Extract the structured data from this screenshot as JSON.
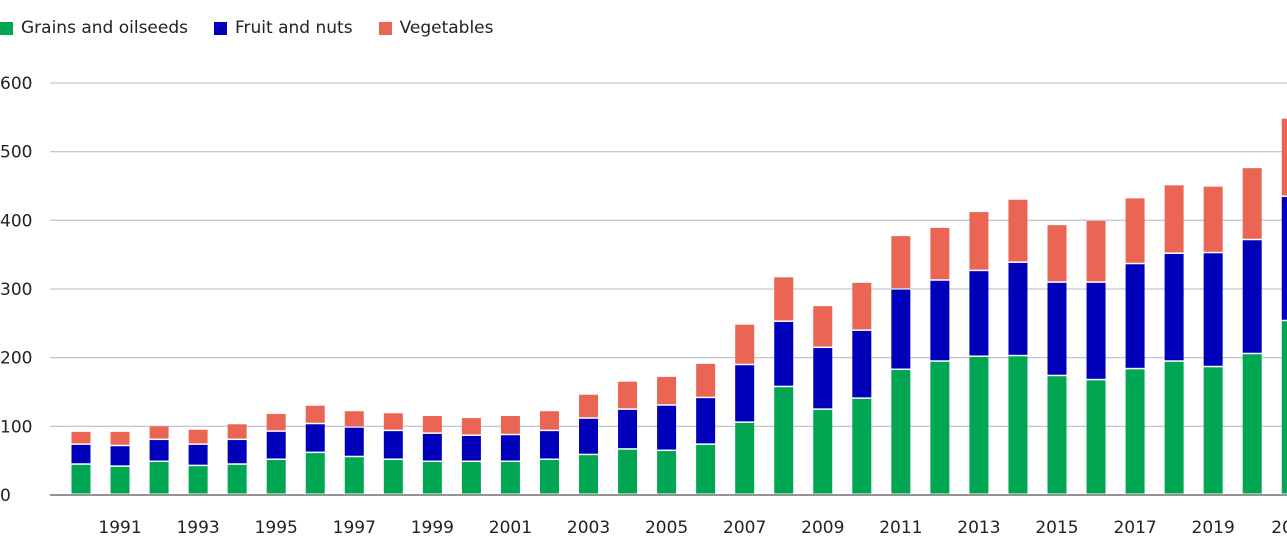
{
  "chart_data": {
    "type": "bar",
    "stacked": true,
    "title": "",
    "xlabel": "",
    "ylabel": "",
    "ylim": [
      0,
      600
    ],
    "yticks": [
      0,
      100,
      200,
      300,
      400,
      500,
      600
    ],
    "grid": true,
    "legend_position": "top-left",
    "categories": [
      1990,
      1991,
      1992,
      1993,
      1994,
      1995,
      1996,
      1997,
      1998,
      1999,
      2000,
      2001,
      2002,
      2003,
      2004,
      2005,
      2006,
      2007,
      2008,
      2009,
      2010,
      2011,
      2012,
      2013,
      2014,
      2015,
      2016,
      2017,
      2018,
      2019,
      2020,
      2021
    ],
    "xtick_labels": [
      "1991",
      "1993",
      "1995",
      "1997",
      "1999",
      "2001",
      "2003",
      "2005",
      "2007",
      "2009",
      "2011",
      "2013",
      "2015",
      "2017",
      "2019",
      "20"
    ],
    "series": [
      {
        "name": "Grains and oilseeds",
        "color": "#00a651",
        "values": [
          44,
          41,
          48,
          42,
          44,
          51,
          61,
          55,
          51,
          48,
          48,
          48,
          51,
          58,
          66,
          64,
          73,
          105,
          157,
          124,
          140,
          182,
          194,
          201,
          202,
          173,
          167,
          183,
          194,
          186,
          205,
          253
        ]
      },
      {
        "name": "Fruit and nuts",
        "color": "#0000bb",
        "values": [
          29,
          30,
          32,
          31,
          36,
          41,
          42,
          43,
          42,
          41,
          38,
          39,
          42,
          53,
          58,
          66,
          68,
          84,
          95,
          90,
          99,
          117,
          118,
          125,
          136,
          136,
          142,
          153,
          157,
          166,
          166,
          181
        ]
      },
      {
        "name": "Vegetables",
        "color": "#ea6553",
        "values": [
          19,
          21,
          20,
          22,
          23,
          26,
          27,
          24,
          26,
          26,
          26,
          28,
          29,
          35,
          41,
          42,
          50,
          59,
          65,
          61,
          70,
          78,
          77,
          86,
          92,
          84,
          90,
          96,
          100,
          97,
          105,
          114
        ]
      }
    ]
  }
}
